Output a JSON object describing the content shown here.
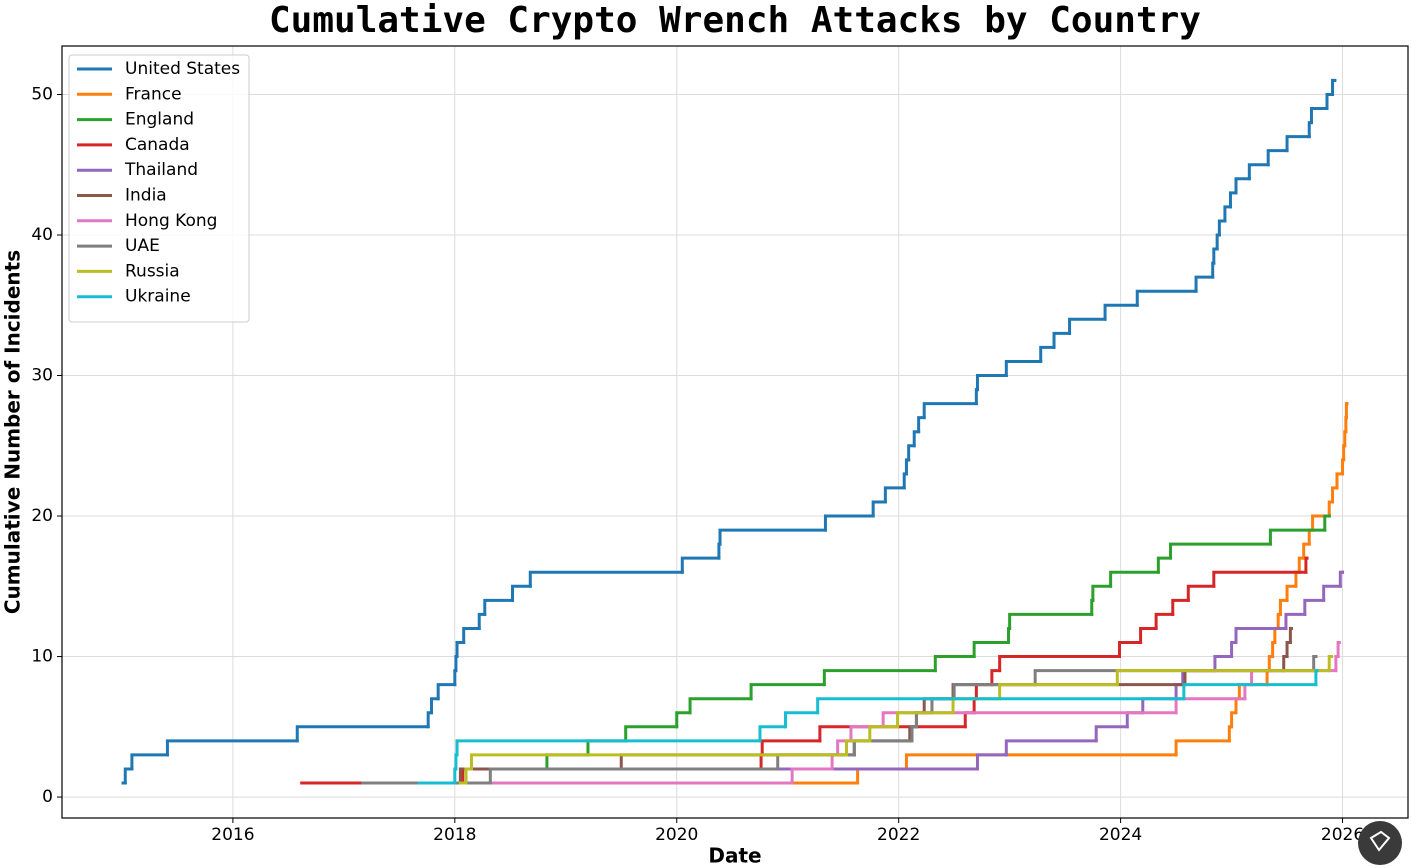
{
  "chart_data": {
    "type": "line",
    "drawstyle": "steps-post",
    "title": "Cumulative Crypto Wrench Attacks by Country",
    "x_label": "Date",
    "y_label": "Cumulative Number of Incidents",
    "xlim": [
      2014.46,
      2026.59
    ],
    "ylim": [
      -1.49,
      53.45
    ],
    "xticks": [
      2016,
      2018,
      2020,
      2022,
      2024,
      2026
    ],
    "yticks": [
      0,
      10,
      20,
      30,
      40,
      50
    ],
    "grid": true,
    "legend": "upper left",
    "series": [
      {
        "name": "United States",
        "color": "#1f77b4",
        "x": [
          2015.01,
          2015.03,
          2015.09,
          2015.41,
          2016.58,
          2017.76,
          2017.79,
          2017.85,
          2018.0,
          2018.01,
          2018.02,
          2018.08,
          2018.22,
          2018.27,
          2018.52,
          2018.68,
          2020.05,
          2020.38,
          2020.39,
          2021.34,
          2021.77,
          2021.88,
          2022.05,
          2022.07,
          2022.09,
          2022.14,
          2022.18,
          2022.23,
          2022.7,
          2022.71,
          2022.97,
          2023.28,
          2023.4,
          2023.54,
          2023.86,
          2024.15,
          2024.68,
          2024.83,
          2024.84,
          2024.87,
          2024.89,
          2024.94,
          2024.99,
          2025.04,
          2025.16,
          2025.33,
          2025.5,
          2025.7,
          2025.72,
          2025.86,
          2025.91,
          2025.93
        ],
        "values": [
          1,
          2,
          3,
          4,
          5,
          6,
          7,
          8,
          9,
          10,
          11,
          12,
          13,
          14,
          15,
          16,
          17,
          18,
          19,
          20,
          21,
          22,
          23,
          24,
          25,
          26,
          27,
          28,
          29,
          30,
          31,
          32,
          33,
          34,
          35,
          36,
          37,
          38,
          39,
          40,
          41,
          42,
          43,
          44,
          45,
          46,
          47,
          48,
          49,
          50,
          51,
          51
        ]
      },
      {
        "name": "France",
        "color": "#ff7f0e",
        "x": [
          2021.02,
          2021.63,
          2022.07,
          2024.5,
          2024.98,
          2025.0,
          2025.04,
          2025.07,
          2025.32,
          2025.34,
          2025.37,
          2025.39,
          2025.42,
          2025.44,
          2025.5,
          2025.58,
          2025.61,
          2025.65,
          2025.7,
          2025.73,
          2025.88,
          2025.91,
          2025.95,
          2026.0,
          2026.01,
          2026.02,
          2026.03,
          2026.035,
          2026.04
        ],
        "values": [
          1,
          2,
          3,
          4,
          5,
          6,
          7,
          8,
          9,
          10,
          11,
          12,
          13,
          14,
          15,
          16,
          17,
          18,
          19,
          20,
          21,
          22,
          23,
          24,
          25,
          26,
          27,
          28,
          28
        ]
      },
      {
        "name": "England",
        "color": "#2ca02c",
        "x": [
          2018.0,
          2018.07,
          2018.83,
          2019.2,
          2019.54,
          2020.0,
          2020.12,
          2020.67,
          2021.33,
          2022.33,
          2022.68,
          2022.99,
          2023.0,
          2023.74,
          2023.75,
          2023.91,
          2024.34,
          2024.45,
          2025.35,
          2025.84,
          2025.88
        ],
        "values": [
          1,
          2,
          3,
          4,
          5,
          6,
          7,
          8,
          9,
          10,
          11,
          12,
          13,
          14,
          15,
          16,
          17,
          18,
          19,
          20,
          20
        ]
      },
      {
        "name": "Canada",
        "color": "#d62728",
        "x": [
          2016.62,
          2018.07,
          2020.76,
          2020.77,
          2021.29,
          2022.6,
          2022.68,
          2022.7,
          2022.84,
          2022.91,
          2023.99,
          2024.18,
          2024.32,
          2024.47,
          2024.61,
          2024.84,
          2025.67,
          2025.68
        ],
        "values": [
          1,
          2,
          3,
          4,
          5,
          6,
          7,
          8,
          9,
          10,
          11,
          12,
          13,
          14,
          15,
          16,
          17,
          17
        ]
      },
      {
        "name": "Thailand",
        "color": "#9467bd",
        "x": [
          2017.95,
          2018.1,
          2022.71,
          2022.97,
          2023.78,
          2024.06,
          2024.2,
          2024.5,
          2024.56,
          2024.85,
          2025.0,
          2025.04,
          2025.49,
          2025.66,
          2025.83,
          2025.98,
          2026.0
        ],
        "values": [
          1,
          2,
          3,
          4,
          5,
          6,
          7,
          8,
          9,
          10,
          11,
          12,
          13,
          14,
          15,
          16,
          16
        ]
      },
      {
        "name": "India",
        "color": "#8c564b",
        "x": [
          2017.98,
          2018.05,
          2019.5,
          2021.6,
          2022.1,
          2022.16,
          2022.23,
          2022.49,
          2024.58,
          2025.47,
          2025.5,
          2025.53,
          2025.54
        ],
        "values": [
          1,
          2,
          3,
          4,
          5,
          6,
          7,
          8,
          9,
          10,
          11,
          12,
          12
        ]
      },
      {
        "name": "Hong Kong",
        "color": "#e377c2",
        "x": [
          2018.32,
          2021.04,
          2021.4,
          2021.45,
          2021.57,
          2021.86,
          2024.5,
          2025.12,
          2025.18,
          2025.94,
          2025.96,
          2025.97
        ],
        "values": [
          1,
          2,
          3,
          4,
          5,
          6,
          7,
          8,
          9,
          10,
          11,
          11
        ]
      },
      {
        "name": "UAE",
        "color": "#7f7f7f",
        "x": [
          2017.17,
          2018.32,
          2020.91,
          2021.6,
          2022.12,
          2022.16,
          2022.3,
          2022.5,
          2023.23,
          2025.74,
          2025.76
        ],
        "values": [
          1,
          2,
          3,
          4,
          5,
          6,
          7,
          8,
          9,
          10,
          10
        ]
      },
      {
        "name": "Russia",
        "color": "#bcbd22",
        "x": [
          2018.05,
          2018.1,
          2018.15,
          2021.53,
          2021.74,
          2021.99,
          2022.49,
          2022.91,
          2023.97,
          2025.88,
          2025.9
        ],
        "values": [
          1,
          2,
          3,
          4,
          5,
          6,
          7,
          8,
          9,
          10,
          10
        ]
      },
      {
        "name": "Ukraine",
        "color": "#17becf",
        "x": [
          2017.68,
          2018.0,
          2018.01,
          2018.02,
          2020.75,
          2020.98,
          2021.27,
          2024.57,
          2025.76,
          2025.77
        ],
        "values": [
          1,
          2,
          3,
          4,
          5,
          6,
          7,
          8,
          9,
          9
        ]
      }
    ]
  }
}
